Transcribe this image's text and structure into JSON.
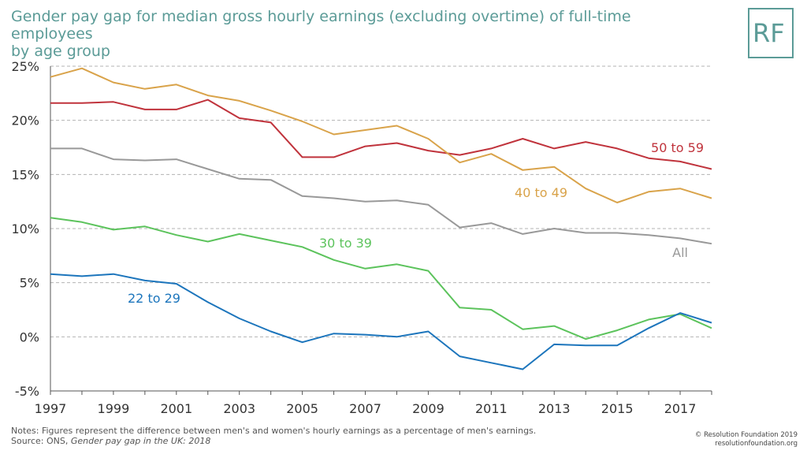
{
  "title_line1": "Gender pay gap for median gross hourly earnings (excluding overtime) of full-time employees",
  "title_line2": "by age group",
  "logo": "RF",
  "notes_line1": "Notes: Figures represent the difference between men's and women's hourly earnings as a percentage of men's earnings.",
  "source_prefix": "Source: ONS, ",
  "source_title": "Gender pay gap in the UK: 2018",
  "copyright_line1": "© Resolution Foundation 2019",
  "copyright_line2": "resolutionfoundation.org",
  "chart_data": {
    "type": "line",
    "x": [
      1997,
      1998,
      1999,
      2000,
      2001,
      2002,
      2003,
      2004,
      2005,
      2006,
      2007,
      2008,
      2009,
      2010,
      2011,
      2012,
      2013,
      2014,
      2015,
      2016,
      2017,
      2018
    ],
    "xticks": [
      1997,
      1999,
      2001,
      2003,
      2005,
      2007,
      2009,
      2011,
      2013,
      2015,
      2017
    ],
    "yticks": [
      -5,
      0,
      5,
      10,
      15,
      20,
      25
    ],
    "ytick_labels": [
      "-5%",
      "0%",
      "5%",
      "10%",
      "15%",
      "20%",
      "25%"
    ],
    "ylim": [
      -5,
      25
    ],
    "xlim": [
      1997,
      2018
    ],
    "grid": true,
    "series": [
      {
        "name": "50 to 59",
        "color": "#c0333c",
        "values": [
          21.6,
          21.6,
          21.7,
          21.0,
          21.0,
          21.9,
          20.2,
          19.8,
          16.6,
          16.6,
          17.6,
          17.9,
          17.2,
          16.8,
          17.4,
          18.3,
          17.4,
          18.0,
          17.4,
          16.5,
          16.2,
          15.5
        ]
      },
      {
        "name": "40 to 49",
        "color": "#d9a34a",
        "values": [
          24.0,
          24.8,
          23.5,
          22.9,
          23.3,
          22.3,
          21.8,
          20.9,
          19.9,
          18.7,
          19.1,
          19.5,
          18.3,
          16.1,
          16.9,
          15.4,
          15.7,
          13.7,
          12.4,
          13.4,
          13.7,
          12.8
        ]
      },
      {
        "name": "All",
        "color": "#999999",
        "values": [
          17.4,
          17.4,
          16.4,
          16.3,
          16.4,
          15.5,
          14.6,
          14.5,
          13.0,
          12.8,
          12.5,
          12.6,
          12.2,
          10.1,
          10.5,
          9.5,
          10.0,
          9.6,
          9.6,
          9.4,
          9.1,
          8.6
        ]
      },
      {
        "name": "30 to 39",
        "color": "#5cc35c",
        "values": [
          11.0,
          10.6,
          9.9,
          10.2,
          9.4,
          8.8,
          9.5,
          8.9,
          8.3,
          7.1,
          6.3,
          6.7,
          6.1,
          2.7,
          2.5,
          0.7,
          1.0,
          -0.2,
          0.6,
          1.6,
          2.1,
          0.8
        ]
      },
      {
        "name": "22 to 29",
        "color": "#1c75bc",
        "values": [
          5.8,
          5.6,
          5.8,
          5.2,
          4.9,
          3.2,
          1.7,
          0.5,
          -0.5,
          0.3,
          0.2,
          0.0,
          0.5,
          -1.8,
          -2.4,
          -3.0,
          -0.7,
          -0.8,
          -0.8,
          0.8,
          2.2,
          1.3
        ]
      }
    ]
  }
}
